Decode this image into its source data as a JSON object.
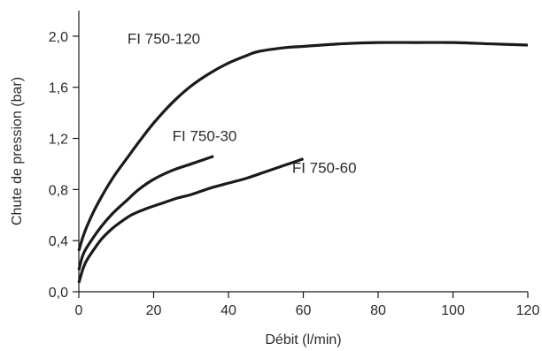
{
  "chart_data": {
    "type": "line",
    "xlabel": "Débit (l/min)",
    "ylabel": "Chute de pression (bar)",
    "xlim": [
      0,
      120
    ],
    "ylim": [
      0,
      2.2
    ],
    "x_ticks": [
      0,
      20,
      40,
      60,
      80,
      100,
      120
    ],
    "x_tick_labels": [
      "0",
      "20",
      "40",
      "60",
      "80",
      "100",
      "120"
    ],
    "y_ticks": [
      0,
      0.4,
      0.8,
      1.2,
      1.6,
      2.0
    ],
    "y_tick_labels": [
      "0,0",
      "0,4",
      "0,8",
      "1,2",
      "1,6",
      "2,0"
    ],
    "grid": false,
    "series": [
      {
        "name": "FI 750-120",
        "x": [
          0,
          1,
          2,
          4,
          6,
          8,
          10,
          13,
          16,
          20,
          25,
          30,
          35,
          40,
          45,
          48,
          55,
          60,
          70,
          80,
          90,
          100,
          110,
          120
        ],
        "y": [
          0.32,
          0.42,
          0.5,
          0.63,
          0.74,
          0.84,
          0.93,
          1.05,
          1.17,
          1.32,
          1.48,
          1.61,
          1.71,
          1.79,
          1.85,
          1.88,
          1.91,
          1.92,
          1.94,
          1.95,
          1.95,
          1.95,
          1.94,
          1.93
        ]
      },
      {
        "name": "FI 750-30",
        "x": [
          0,
          1,
          2,
          4,
          6,
          8,
          10,
          13,
          16,
          20,
          25,
          30,
          36
        ],
        "y": [
          0.17,
          0.28,
          0.34,
          0.43,
          0.51,
          0.58,
          0.64,
          0.72,
          0.8,
          0.88,
          0.95,
          1.0,
          1.06
        ]
      },
      {
        "name": "FI 750-60",
        "x": [
          0,
          1,
          2,
          4,
          6,
          8,
          10,
          14,
          18,
          22,
          26,
          30,
          35,
          40,
          45,
          50,
          55,
          60
        ],
        "y": [
          0.07,
          0.17,
          0.24,
          0.33,
          0.41,
          0.47,
          0.52,
          0.6,
          0.65,
          0.69,
          0.73,
          0.76,
          0.81,
          0.85,
          0.89,
          0.94,
          0.99,
          1.04
        ]
      }
    ],
    "annotations": [
      {
        "text": "FI 750-120",
        "x": 13,
        "y": 1.94
      },
      {
        "text": "FI 750-30",
        "x": 25,
        "y": 1.18
      },
      {
        "text": "FI 750-60",
        "x": 57,
        "y": 0.93
      }
    ]
  }
}
